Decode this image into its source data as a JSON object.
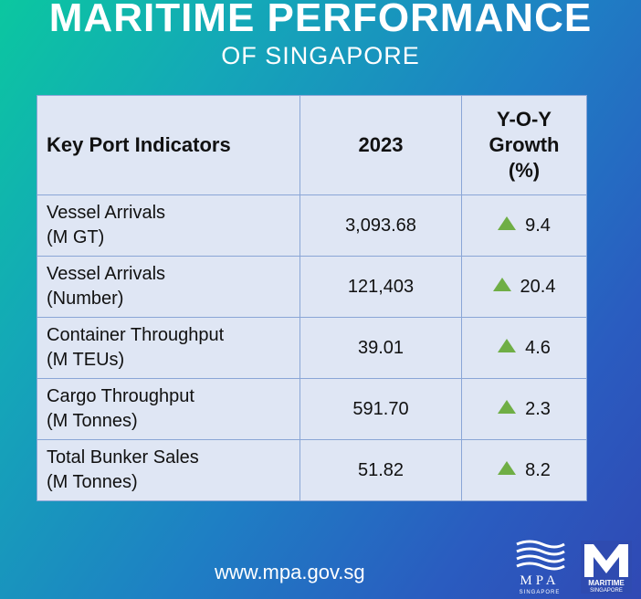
{
  "header": {
    "title": "MARITIME PERFORMANCE",
    "subtitle": "OF SINGAPORE"
  },
  "table": {
    "headers": [
      "Key Port Indicators",
      "2023",
      "Y-O-Y",
      "Growth",
      "(%)"
    ],
    "rows": [
      {
        "line1": "Vessel Arrivals",
        "line2": "(M GT)",
        "value": "3,093.68",
        "growth": "9.4",
        "trend": "up"
      },
      {
        "line1": "Vessel Arrivals",
        "line2": "(Number)",
        "value": "121,403",
        "growth": "20.4",
        "trend": "up"
      },
      {
        "line1": "Container Throughput",
        "line2": "(M TEUs)",
        "value": "39.01",
        "growth": "4.6",
        "trend": "up"
      },
      {
        "line1": "Cargo Throughput",
        "line2": "(M Tonnes)",
        "value": "591.70",
        "growth": "2.3",
        "trend": "up"
      },
      {
        "line1": "Total Bunker Sales",
        "line2": "(M Tonnes)",
        "value": "51.82",
        "growth": "8.2",
        "trend": "up"
      }
    ]
  },
  "footer": {
    "url": "www.mpa.gov.sg",
    "mpa_logo_text": "MPA",
    "mpa_logo_subtext": "SINGAPORE",
    "ms_logo_text": "MARITIME",
    "ms_logo_subtext": "SINGAPORE"
  },
  "colors": {
    "up_arrow": "#6fae45",
    "table_bg": "#dfe6f4",
    "border": "#8aa6d6"
  }
}
